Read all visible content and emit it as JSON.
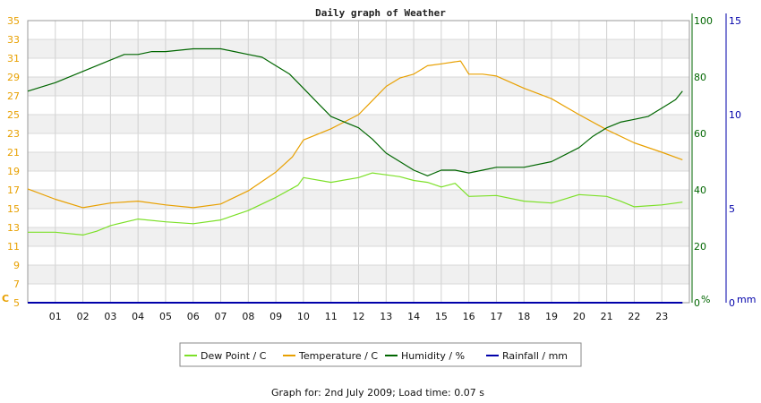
{
  "chart_data": {
    "type": "line",
    "title": "Daily graph of Weather",
    "footer": "Graph for: 2nd July 2009; Load time: 0.07 s",
    "x_range": [
      0,
      24
    ],
    "x_ticks": [
      "01",
      "02",
      "03",
      "04",
      "05",
      "06",
      "07",
      "08",
      "09",
      "10",
      "11",
      "12",
      "13",
      "14",
      "15",
      "16",
      "17",
      "18",
      "19",
      "20",
      "21",
      "22",
      "23"
    ],
    "axes": {
      "left": {
        "unit": "C",
        "range": [
          5,
          35
        ],
        "ticks": [
          5,
          7,
          9,
          11,
          13,
          15,
          17,
          19,
          21,
          23,
          25,
          27,
          29,
          31,
          33,
          35
        ],
        "color": "#e8a000"
      },
      "right1": {
        "unit": "%",
        "range": [
          0,
          100
        ],
        "ticks": [
          0,
          20,
          40,
          60,
          80,
          100
        ],
        "color": "#006600"
      },
      "right2": {
        "unit": "mm",
        "range": [
          0,
          15
        ],
        "ticks": [
          0,
          5,
          10,
          15
        ],
        "color": "#0000aa"
      }
    },
    "grid": true,
    "legend_position": "bottom",
    "series": [
      {
        "name": "Dew Point / C",
        "color": "#7ce028",
        "axis": "left",
        "x": [
          0,
          1,
          2,
          2.5,
          3,
          4,
          5,
          6,
          7,
          8,
          9,
          9.8,
          10,
          11,
          12,
          12.5,
          13,
          13.5,
          14,
          14.5,
          15,
          15.5,
          16,
          17,
          18,
          19,
          20,
          21,
          21.5,
          22,
          23,
          23.75
        ],
        "y": [
          12.5,
          12.5,
          12.2,
          12.6,
          13.2,
          13.9,
          13.6,
          13.4,
          13.8,
          14.8,
          16.2,
          17.5,
          18.3,
          17.8,
          18.3,
          18.8,
          18.6,
          18.4,
          18.0,
          17.8,
          17.3,
          17.7,
          16.3,
          16.4,
          15.8,
          15.6,
          16.5,
          16.3,
          15.8,
          15.2,
          15.4,
          15.7
        ]
      },
      {
        "name": "Temperature / C",
        "color": "#e8a000",
        "axis": "left",
        "x": [
          0,
          1,
          2,
          3,
          4,
          5,
          6,
          7,
          8,
          9,
          9.6,
          10,
          11,
          12,
          12.5,
          13,
          13.5,
          14,
          14.5,
          15,
          15.7,
          16,
          16.5,
          17,
          18,
          19,
          20,
          21,
          22,
          23,
          23.75
        ],
        "y": [
          17.1,
          16.0,
          15.1,
          15.6,
          15.8,
          15.4,
          15.1,
          15.5,
          16.9,
          18.9,
          20.5,
          22.3,
          23.5,
          25.0,
          26.5,
          28.0,
          28.9,
          29.3,
          30.2,
          30.4,
          30.7,
          29.3,
          29.3,
          29.1,
          27.8,
          26.7,
          25.0,
          23.4,
          22.0,
          21.0,
          20.2
        ]
      },
      {
        "name": "Humidity / %",
        "color": "#006600",
        "axis": "right1",
        "x": [
          0,
          1,
          2,
          3,
          3.5,
          4,
          4.5,
          5,
          6,
          6.5,
          7,
          7.5,
          8,
          8.5,
          9,
          9.5,
          10,
          10.5,
          11,
          11.5,
          12,
          12.5,
          13,
          13.5,
          14,
          14.5,
          15,
          15.5,
          16,
          16.5,
          17,
          18,
          19,
          20,
          20.5,
          21,
          21.5,
          22,
          22.5,
          23,
          23.5,
          23.75
        ],
        "y": [
          75,
          78,
          82,
          86,
          88,
          88,
          89,
          89,
          90,
          90,
          90,
          89,
          88,
          87,
          84,
          81,
          76,
          71,
          66,
          64,
          62,
          58,
          53,
          50,
          47,
          45,
          47,
          47,
          46,
          47,
          48,
          48,
          50,
          55,
          59,
          62,
          64,
          65,
          66,
          69,
          72,
          75
        ]
      },
      {
        "name": "Rainfall / mm",
        "color": "#0000aa",
        "axis": "right2",
        "x": [
          0,
          23.75
        ],
        "y": [
          0,
          0
        ]
      }
    ]
  }
}
